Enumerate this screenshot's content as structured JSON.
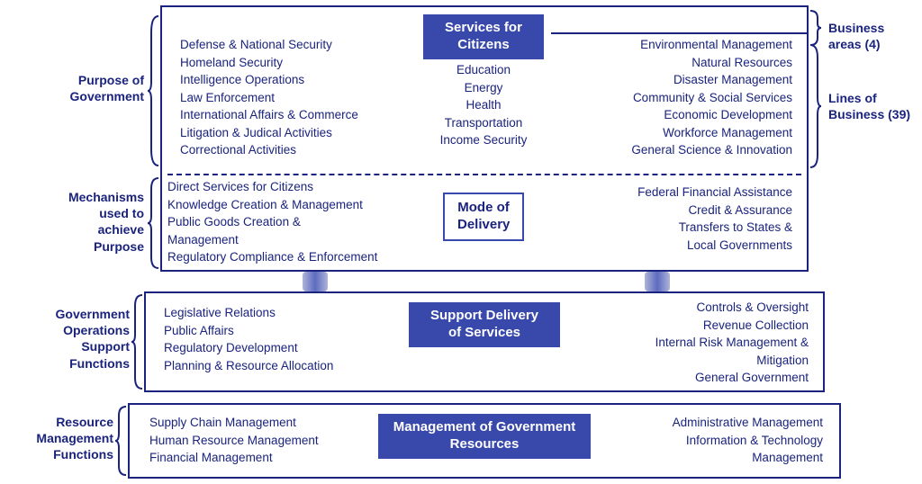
{
  "colors": {
    "primary": "#1a237e",
    "titleFill": "#3949ab",
    "titleText": "#ffffff",
    "background": "#ffffff"
  },
  "leftLabels": {
    "purpose": "Purpose of\nGovernment",
    "mechanisms": "Mechanisms\nused to\nachieve\nPurpose",
    "operations": "Government\nOperations\nSupport\nFunctions",
    "resource": "Resource\nManagement\nFunctions"
  },
  "rightLabels": {
    "businessAreas": "Business\nareas (4)",
    "linesOfBusiness": "Lines of\nBusiness (39)"
  },
  "layer1": {
    "title": "Services for\nCitizens",
    "colLeft": [
      "Defense & National Security",
      "Homeland Security",
      "Intelligence Operations",
      "Law Enforcement",
      "International Affairs & Commerce",
      "Litigation & Judical Activities",
      "Correctional Activities"
    ],
    "colCenter": [
      "Education",
      "Energy",
      "Health",
      "Transportation",
      "Income Security"
    ],
    "colRight": [
      "Environmental Management",
      "Natural Resources",
      "Disaster Management",
      "Community & Social Services",
      "Economic Development",
      "Workforce Management",
      "General Science & Innovation"
    ]
  },
  "layer2": {
    "title": "Mode of\nDelivery",
    "colLeft": [
      "Direct Services for Citizens",
      "Knowledge Creation & Management",
      "Public Goods Creation &",
      "Management",
      "Regulatory Compliance & Enforcement"
    ],
    "colRight": [
      "Federal Financial Assistance",
      "Credit & Assurance",
      "Transfers to States &",
      "Local Governments"
    ]
  },
  "layer3": {
    "title": "Support Delivery\nof Services",
    "colLeft": [
      "Legislative Relations",
      "Public Affairs",
      "Regulatory Development",
      "Planning & Resource Allocation"
    ],
    "colRight": [
      "Controls & Oversight",
      "Revenue Collection",
      "Internal Risk Management &",
      "Mitigation",
      "General Government"
    ]
  },
  "layer4": {
    "title": "Management of Government\nResources",
    "colLeft": [
      "Supply Chain Management",
      "Human Resource Management",
      "Financial Management"
    ],
    "colRight": [
      "Administrative Management",
      "Information & Technology",
      "Management"
    ]
  }
}
